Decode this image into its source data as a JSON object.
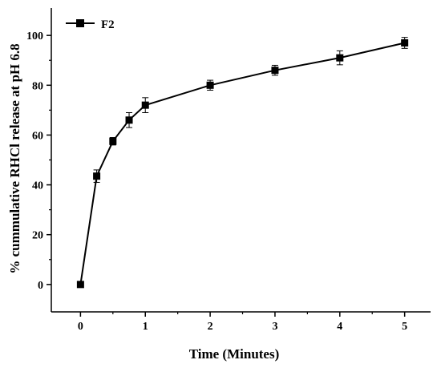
{
  "chart_data": {
    "type": "line",
    "title": "",
    "xlabel": "Time (Minutes)",
    "ylabel": "% cummulative RHCl release at pH 6.8",
    "xlim": [
      -0.45,
      5.4
    ],
    "ylim": [
      -11,
      111
    ],
    "x_ticks": [
      0,
      1,
      2,
      3,
      4,
      5
    ],
    "x_minor_ticks": [
      0.5,
      1.5,
      2.5,
      3.5,
      4.5
    ],
    "y_ticks": [
      0,
      20,
      40,
      60,
      80,
      100
    ],
    "y_minor_ticks": [
      10,
      30,
      50,
      70,
      90
    ],
    "grid": false,
    "legend_position": "top-left",
    "series": [
      {
        "name": "F2",
        "color": "#000000",
        "marker": "square",
        "x": [
          0,
          0.25,
          0.5,
          0.75,
          1,
          2,
          3,
          4,
          5
        ],
        "y": [
          0,
          43.5,
          57.5,
          66,
          72,
          80,
          86,
          91,
          97
        ],
        "error": [
          0,
          2.5,
          1.5,
          3,
          3,
          2,
          2,
          2.8,
          2.2
        ]
      }
    ]
  }
}
